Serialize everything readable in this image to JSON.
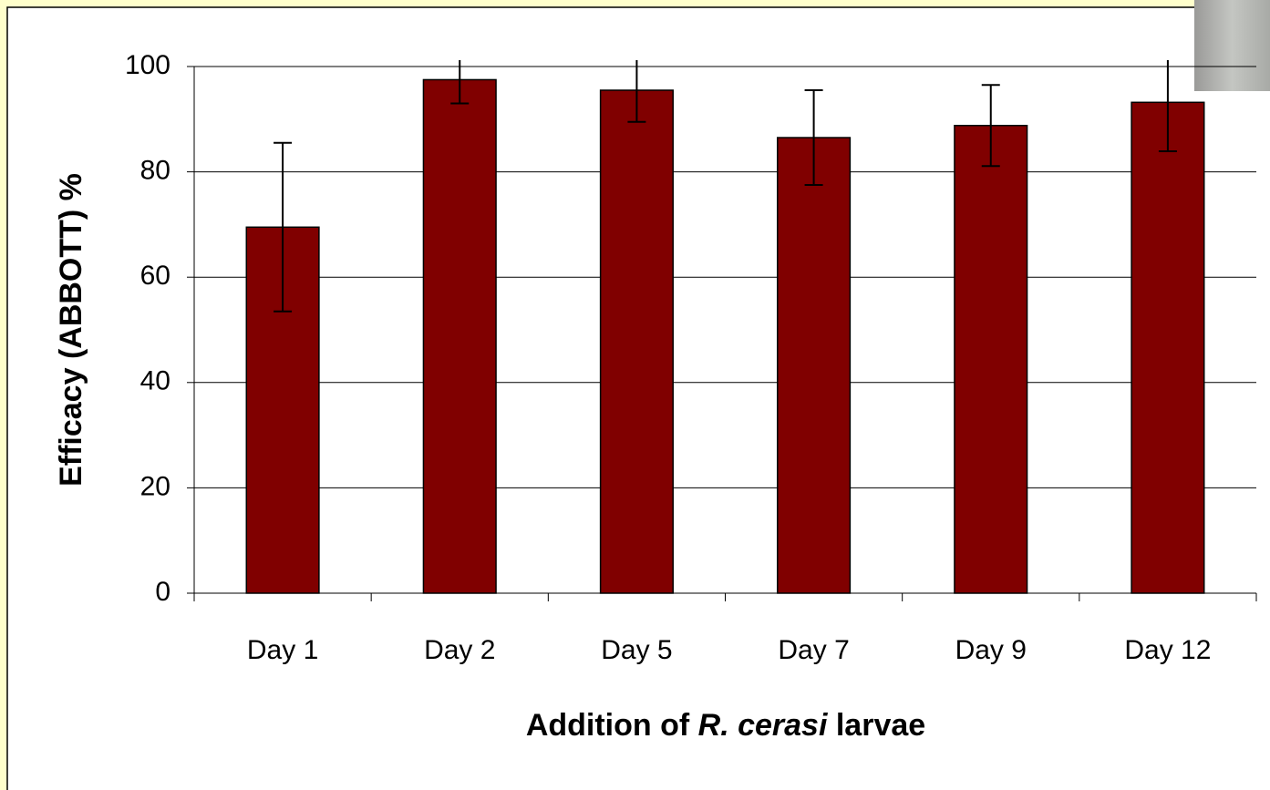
{
  "chart_data": {
    "type": "bar",
    "ylabel": "Efficacy (ABBOTT) %",
    "xlabel": [
      {
        "text": "Addition of "
      },
      {
        "text": "R. cerasi",
        "italic": true
      },
      {
        "text": " larvae"
      }
    ],
    "categories": [
      "Day 1",
      "Day 2",
      "Day 5",
      "Day 7",
      "Day 9",
      "Day 12"
    ],
    "values": [
      69.5,
      97.5,
      95.5,
      86.5,
      88.8,
      93.2
    ],
    "errors": [
      16,
      4.5,
      6,
      9,
      7.7,
      9.3
    ],
    "color": "#800000",
    "ylim": [
      0,
      100
    ],
    "yticks": [
      0,
      20,
      40,
      60,
      80,
      100
    ],
    "grid": true
  }
}
